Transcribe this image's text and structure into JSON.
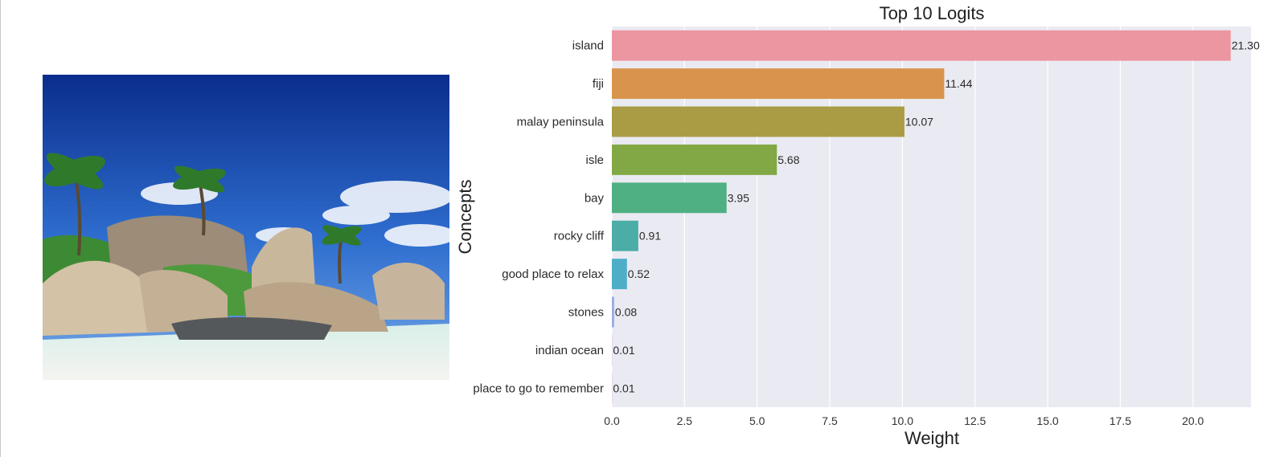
{
  "chart_data": {
    "type": "bar",
    "orientation": "horizontal",
    "title": "Top 10 Logits",
    "xlabel": "Weight",
    "ylabel": "Concepts",
    "xlim": [
      0,
      22
    ],
    "xticks": [
      "0.0",
      "2.5",
      "5.0",
      "7.5",
      "10.0",
      "12.5",
      "15.0",
      "17.5",
      "20.0"
    ],
    "grid": true,
    "categories": [
      "island",
      "fiji",
      "malay peninsula",
      "isle",
      "bay",
      "rocky cliff",
      "good place to relax",
      "stones",
      "indian ocean",
      "place to go to remember"
    ],
    "values": [
      21.3,
      11.44,
      10.07,
      5.68,
      3.95,
      0.91,
      0.52,
      0.08,
      0.01,
      0.01
    ],
    "value_labels": [
      "21.30",
      "11.44",
      "10.07",
      "5.68",
      "3.95",
      "0.91",
      "0.52",
      "0.08",
      "0.01",
      "0.01"
    ],
    "colors": [
      "#ec96a1",
      "#d8944c",
      "#aa9c44",
      "#81a844",
      "#4fb084",
      "#4caca6",
      "#4eaec8",
      "#98aedf",
      "#cbb0e6",
      "#e2a8cc"
    ],
    "background": "#eaeaf2",
    "gridline_color": "#ffffff"
  },
  "photo": {
    "sky_top": "#0b2f8f",
    "sky_bottom": "#3f7fd6",
    "sand": "#eef1ec",
    "rock": "#c9b79c",
    "foliage": "#3d8a34"
  }
}
